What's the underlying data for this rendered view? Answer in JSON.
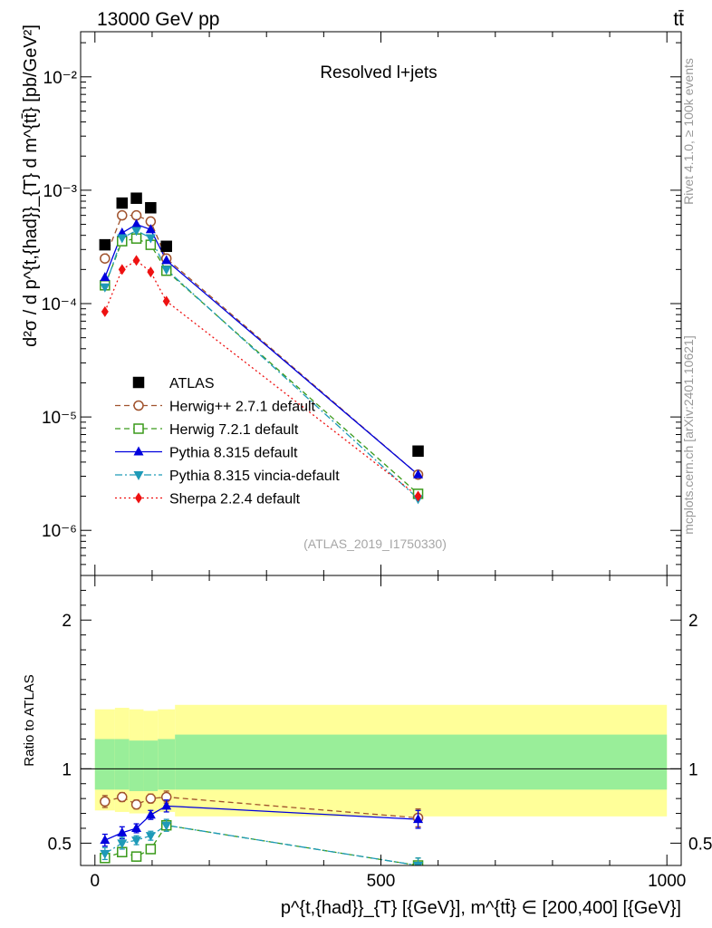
{
  "header": {
    "energy_label": "13000 GeV pp",
    "process_label": "tt̄"
  },
  "side": {
    "rivet_label": "Rivet 4.1.0, ≥ 100k events",
    "mcplots_label": "mcplots.cern.ch [arXiv:2401.10621]"
  },
  "chart_data": [
    {
      "type": "scatter",
      "panel": "main",
      "title": "Resolved l+jets",
      "watermark": "(ATLAS_2019_I1750330)",
      "ylabel": "d²σ / d p^{t,{had}}_{T} d m^{tt̄} [pb/GeV²]",
      "yscale": "log",
      "ylim": [
        4e-07,
        0.025
      ],
      "xlim": [
        -25,
        1025
      ],
      "x_ticks": [
        0,
        500,
        1000
      ],
      "y_ticks": [
        {
          "value": 1e-06,
          "label": "10⁻⁶"
        },
        {
          "value": 1e-05,
          "label": "10⁻⁵"
        },
        {
          "value": 0.0001,
          "label": "10⁻⁴"
        },
        {
          "value": 0.001,
          "label": "10⁻³"
        },
        {
          "value": 0.01,
          "label": "10⁻²"
        }
      ],
      "x": [
        17.5,
        47.5,
        72.5,
        97.5,
        125,
        565
      ],
      "series": [
        {
          "name": "ATLAS",
          "color": "#000000",
          "marker": "square-filled",
          "line": "none",
          "values": [
            0.00033,
            0.00077,
            0.00085,
            0.0007,
            0.00032,
            5e-06
          ]
        },
        {
          "name": "Herwig++ 2.7.1 default",
          "color": "#a0522d",
          "marker": "circle-open",
          "line": "dashed",
          "values": [
            0.00025,
            0.0006,
            0.0006,
            0.00053,
            0.00025,
            3.1e-06
          ]
        },
        {
          "name": "Herwig 7.2.1 default",
          "color": "#3a9a1a",
          "marker": "square-open",
          "line": "dashed",
          "values": [
            0.000145,
            0.000355,
            0.000375,
            0.00033,
            0.000195,
            2.1e-06
          ]
        },
        {
          "name": "Pythia 8.315 default",
          "color": "#0000dd",
          "marker": "triangle-up",
          "line": "solid",
          "values": [
            0.00017,
            0.00042,
            0.0005,
            0.00045,
            0.00024,
            3.1e-06
          ]
        },
        {
          "name": "Pythia 8.315 vincia-default",
          "color": "#1e9ab8",
          "marker": "triangle-down",
          "line": "dashdot",
          "values": [
            0.00014,
            0.00038,
            0.00044,
            0.00038,
            0.0002,
            1.9e-06
          ]
        },
        {
          "name": "Sherpa 2.2.4 default",
          "color": "#ee1111",
          "marker": "diamond",
          "line": "dotted",
          "values": [
            8.5e-05,
            0.0002,
            0.00024,
            0.00019,
            0.000105,
            2e-06
          ]
        }
      ]
    },
    {
      "type": "scatter",
      "panel": "ratio",
      "ylabel": "Ratio to ATLAS",
      "xlabel": "p^{t,{had}}_{T} [{GeV}], m^{tt̄} ∈ [200,400] [{GeV}]",
      "ylim": [
        0.35,
        2.3
      ],
      "xlim": [
        -25,
        1025
      ],
      "x_ticks": [
        0,
        500,
        1000
      ],
      "y_ticks": [
        {
          "value": 0.5,
          "label": "0.5"
        },
        {
          "value": 1,
          "label": "1"
        },
        {
          "value": 2,
          "label": "2"
        }
      ],
      "bands": {
        "edges": [
          0,
          35,
          60,
          85,
          110,
          140,
          1000
        ],
        "outer": [
          [
            0.72,
            1.4
          ],
          [
            0.71,
            1.41
          ],
          [
            0.7,
            1.4
          ],
          [
            0.7,
            1.39
          ],
          [
            0.71,
            1.4
          ],
          [
            0.68,
            1.43
          ]
        ],
        "inner": [
          [
            0.86,
            1.2
          ],
          [
            0.86,
            1.2
          ],
          [
            0.85,
            1.19
          ],
          [
            0.85,
            1.19
          ],
          [
            0.86,
            1.2
          ],
          [
            0.86,
            1.23
          ]
        ],
        "outer_color": "#ffff99",
        "inner_color": "#99ee99"
      },
      "x": [
        17.5,
        47.5,
        72.5,
        97.5,
        125,
        565
      ],
      "series": [
        {
          "name": "Herwig++ 2.7.1 default",
          "color": "#a0522d",
          "marker": "circle-open",
          "line": "dashed",
          "values": [
            0.78,
            0.81,
            0.76,
            0.8,
            0.81,
            0.67
          ],
          "errors": [
            0.04,
            0.03,
            0.03,
            0.03,
            0.04,
            0.06
          ]
        },
        {
          "name": "Herwig 7.2.1 default",
          "color": "#3a9a1a",
          "marker": "square-open",
          "line": "dashed",
          "values": [
            0.4,
            0.44,
            0.41,
            0.46,
            0.62,
            0.35
          ],
          "errors": [
            0.03,
            0.03,
            0.03,
            0.03,
            0.03,
            0.05
          ]
        },
        {
          "name": "Pythia 8.315 default",
          "color": "#0000dd",
          "marker": "triangle-up",
          "line": "solid",
          "values": [
            0.52,
            0.57,
            0.6,
            0.69,
            0.75,
            0.66
          ],
          "errors": [
            0.04,
            0.04,
            0.03,
            0.03,
            0.04,
            0.06
          ]
        },
        {
          "name": "Pythia 8.315 vincia-default",
          "color": "#1e9ab8",
          "marker": "triangle-down",
          "line": "dashdot",
          "values": [
            0.43,
            0.5,
            0.52,
            0.55,
            0.62,
            0.35
          ],
          "errors": [
            0.04,
            0.04,
            0.03,
            0.03,
            0.04,
            0.05
          ]
        }
      ]
    }
  ]
}
